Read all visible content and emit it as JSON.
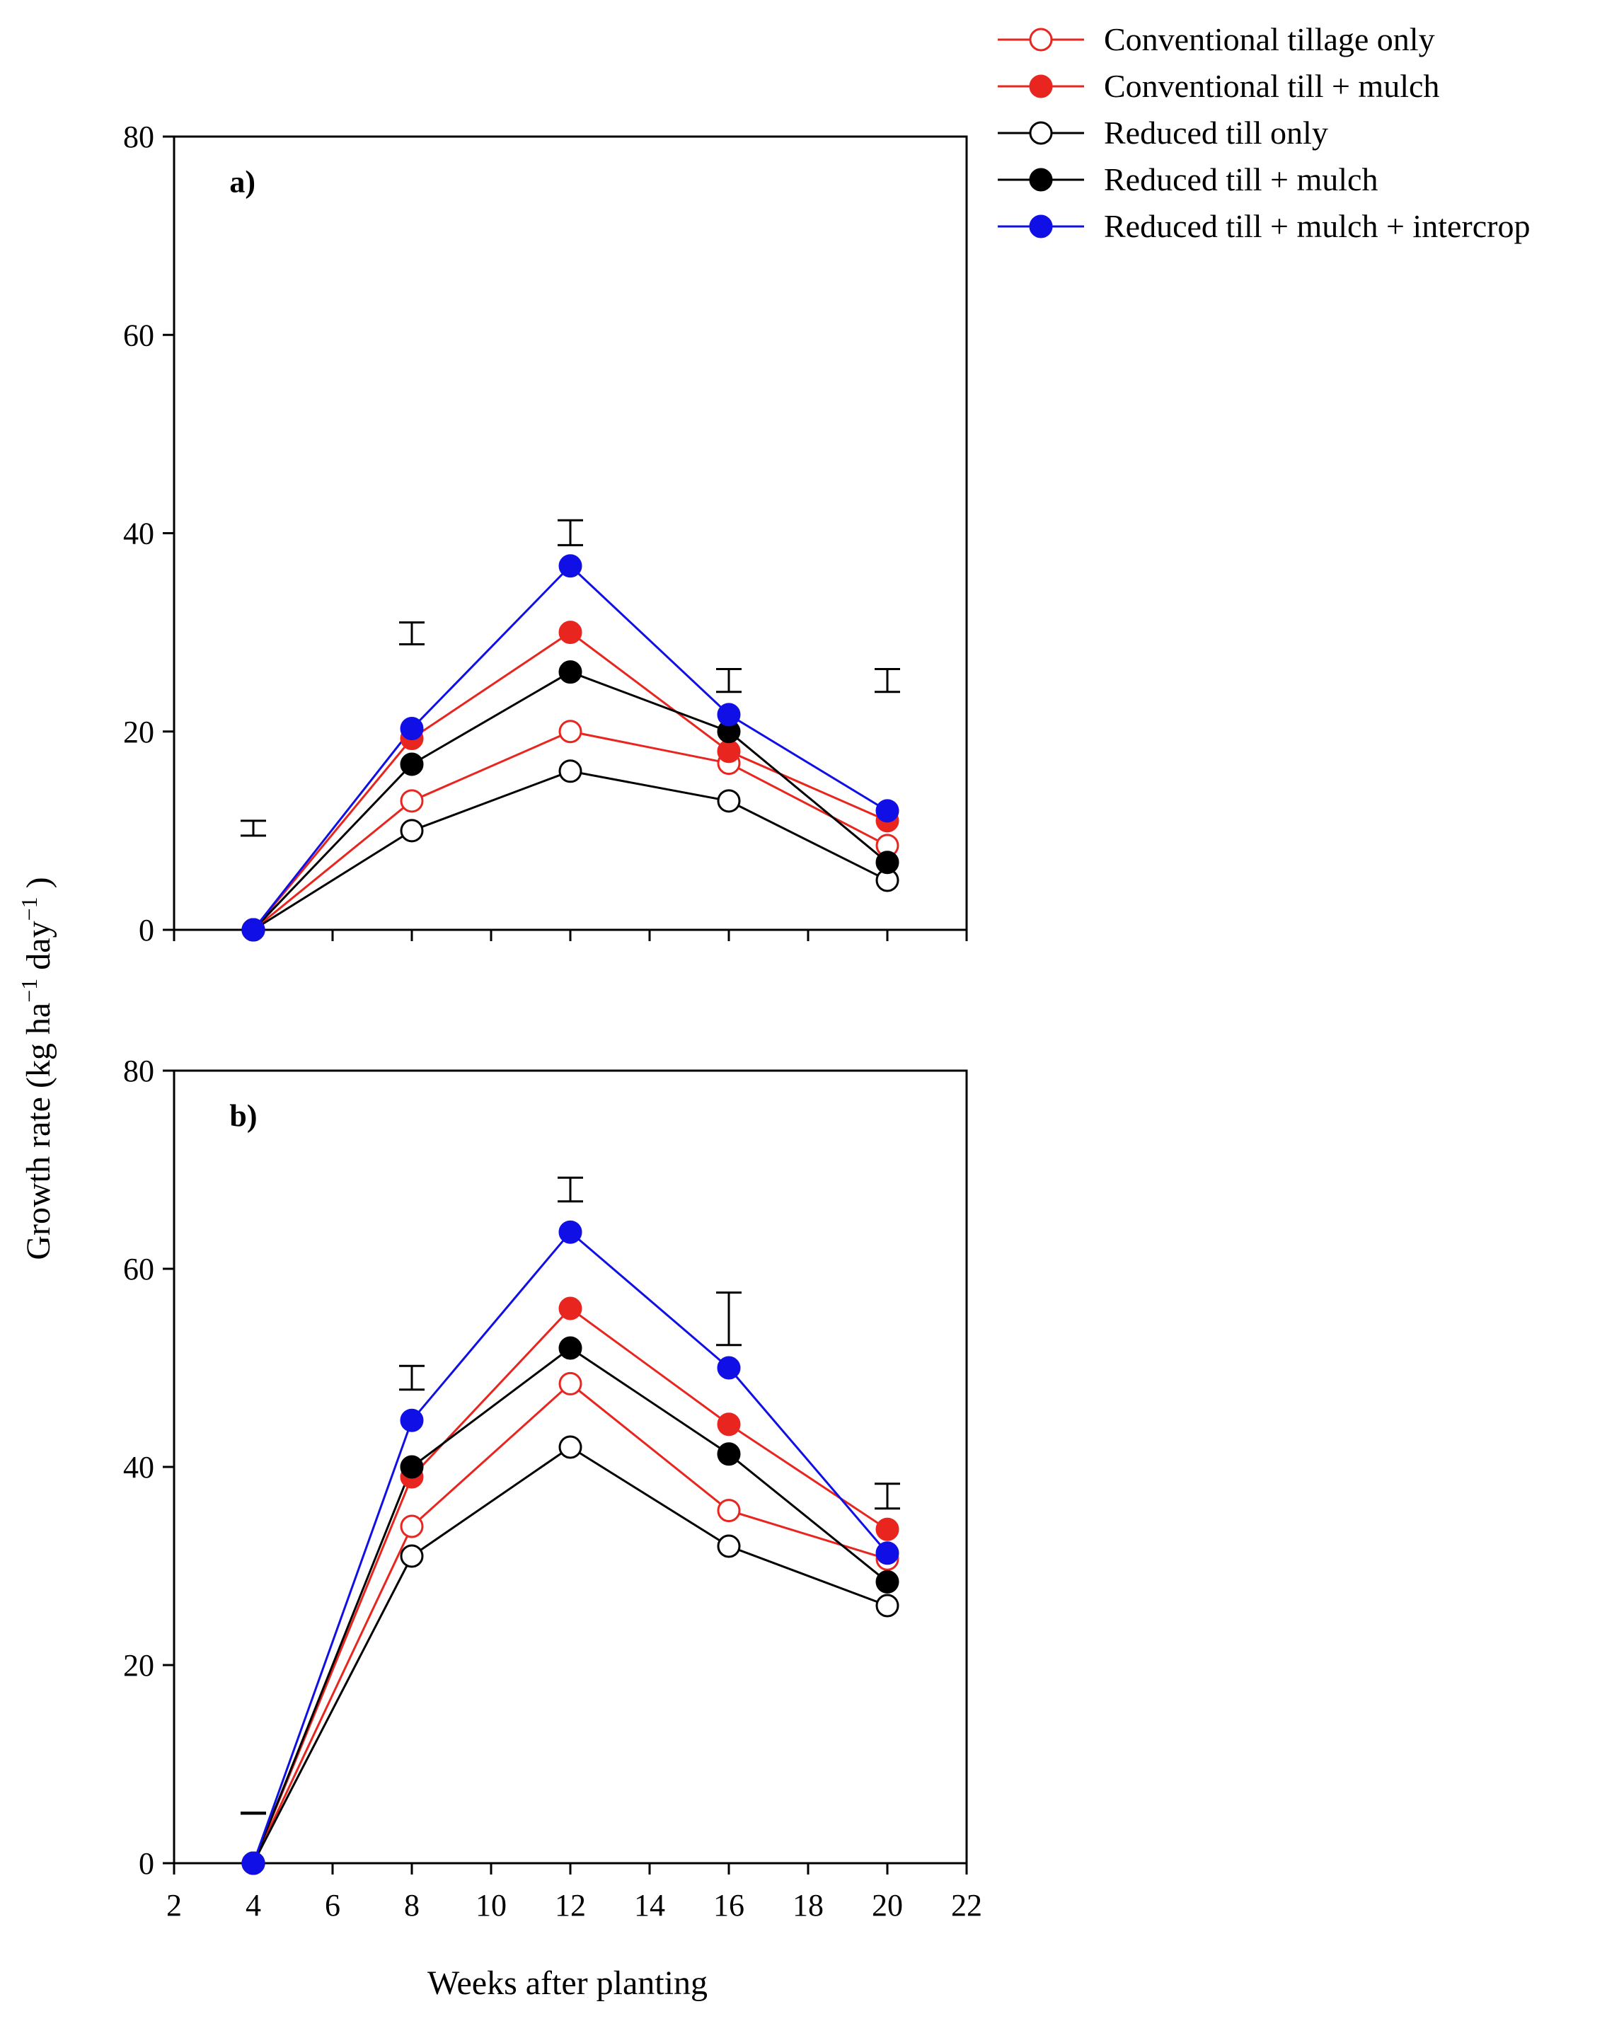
{
  "chart_data": {
    "type": "line",
    "xlabel": "Weeks after planting",
    "ylabel": "Growth rate (kg ha⁻¹ day⁻¹)",
    "ylabel_parts": {
      "a": "Growth rate (kg ha",
      "sup1": "−1",
      "b": " day",
      "sup2": "−1",
      "c": " )"
    },
    "xlim": [
      2,
      22
    ],
    "ylim": [
      0,
      80
    ],
    "x_ticks": [
      "2",
      "4",
      "6",
      "8",
      "10",
      "12",
      "14",
      "16",
      "18",
      "20",
      "22"
    ],
    "y_ticks": [
      "0",
      "20",
      "40",
      "60",
      "80"
    ],
    "legend": [
      {
        "name": "Conventional tillage only",
        "color": "#e8251f",
        "filled": false
      },
      {
        "name": "Conventional till + mulch",
        "color": "#e8251f",
        "filled": true
      },
      {
        "name": "Reduced till only",
        "color": "#000000",
        "filled": false
      },
      {
        "name": "Reduced till + mulch",
        "color": "#000000",
        "filled": true
      },
      {
        "name": "Reduced till + mulch + intercrop",
        "color": "#1010e6",
        "filled": true
      }
    ],
    "panels": [
      {
        "label": "a)",
        "x": [
          4,
          8,
          12,
          16,
          20
        ],
        "series": [
          {
            "name": "Conventional tillage only",
            "values": [
              0,
              13,
              20,
              16.8,
              8.5
            ]
          },
          {
            "name": "Conventional till + mulch",
            "values": [
              0,
              19.3,
              30,
              18,
              11
            ]
          },
          {
            "name": "Reduced till only",
            "values": [
              0,
              10,
              16,
              13,
              5
            ]
          },
          {
            "name": "Reduced till + mulch",
            "values": [
              0,
              16.7,
              26,
              20,
              6.8
            ]
          },
          {
            "name": "Reduced till + mulch + intercrop",
            "values": [
              0,
              20.3,
              36.7,
              21.7,
              12
            ]
          }
        ],
        "error_bars": [
          {
            "x": 4,
            "low": 9.5,
            "high": 11
          },
          {
            "x": 8,
            "low": 28.8,
            "high": 31
          },
          {
            "x": 12,
            "low": 38.8,
            "high": 41.3
          },
          {
            "x": 16,
            "low": 24,
            "high": 26.3
          },
          {
            "x": 20,
            "low": 24,
            "high": 26.3
          }
        ]
      },
      {
        "label": "b)",
        "x": [
          4,
          8,
          12,
          16,
          20
        ],
        "series": [
          {
            "name": "Conventional tillage only",
            "values": [
              0,
              34,
              48.4,
              35.6,
              30.7
            ]
          },
          {
            "name": "Conventional till + mulch",
            "values": [
              0,
              39,
              56,
              44.3,
              33.7
            ]
          },
          {
            "name": "Reduced till only",
            "values": [
              0,
              31,
              42,
              32,
              26
            ]
          },
          {
            "name": "Reduced till + mulch",
            "values": [
              0,
              40,
              52,
              41.3,
              28.4
            ]
          },
          {
            "name": "Reduced till + mulch + intercrop",
            "values": [
              0,
              44.7,
              63.7,
              50,
              31.3
            ]
          }
        ],
        "error_bars": [
          {
            "x": 4,
            "low": 5,
            "high": 5.1
          },
          {
            "x": 8,
            "low": 47.8,
            "high": 50.2
          },
          {
            "x": 12,
            "low": 66.8,
            "high": 69.2
          },
          {
            "x": 16,
            "low": 52.3,
            "high": 57.6
          },
          {
            "x": 20,
            "low": 35.8,
            "high": 38.3
          }
        ]
      }
    ]
  }
}
